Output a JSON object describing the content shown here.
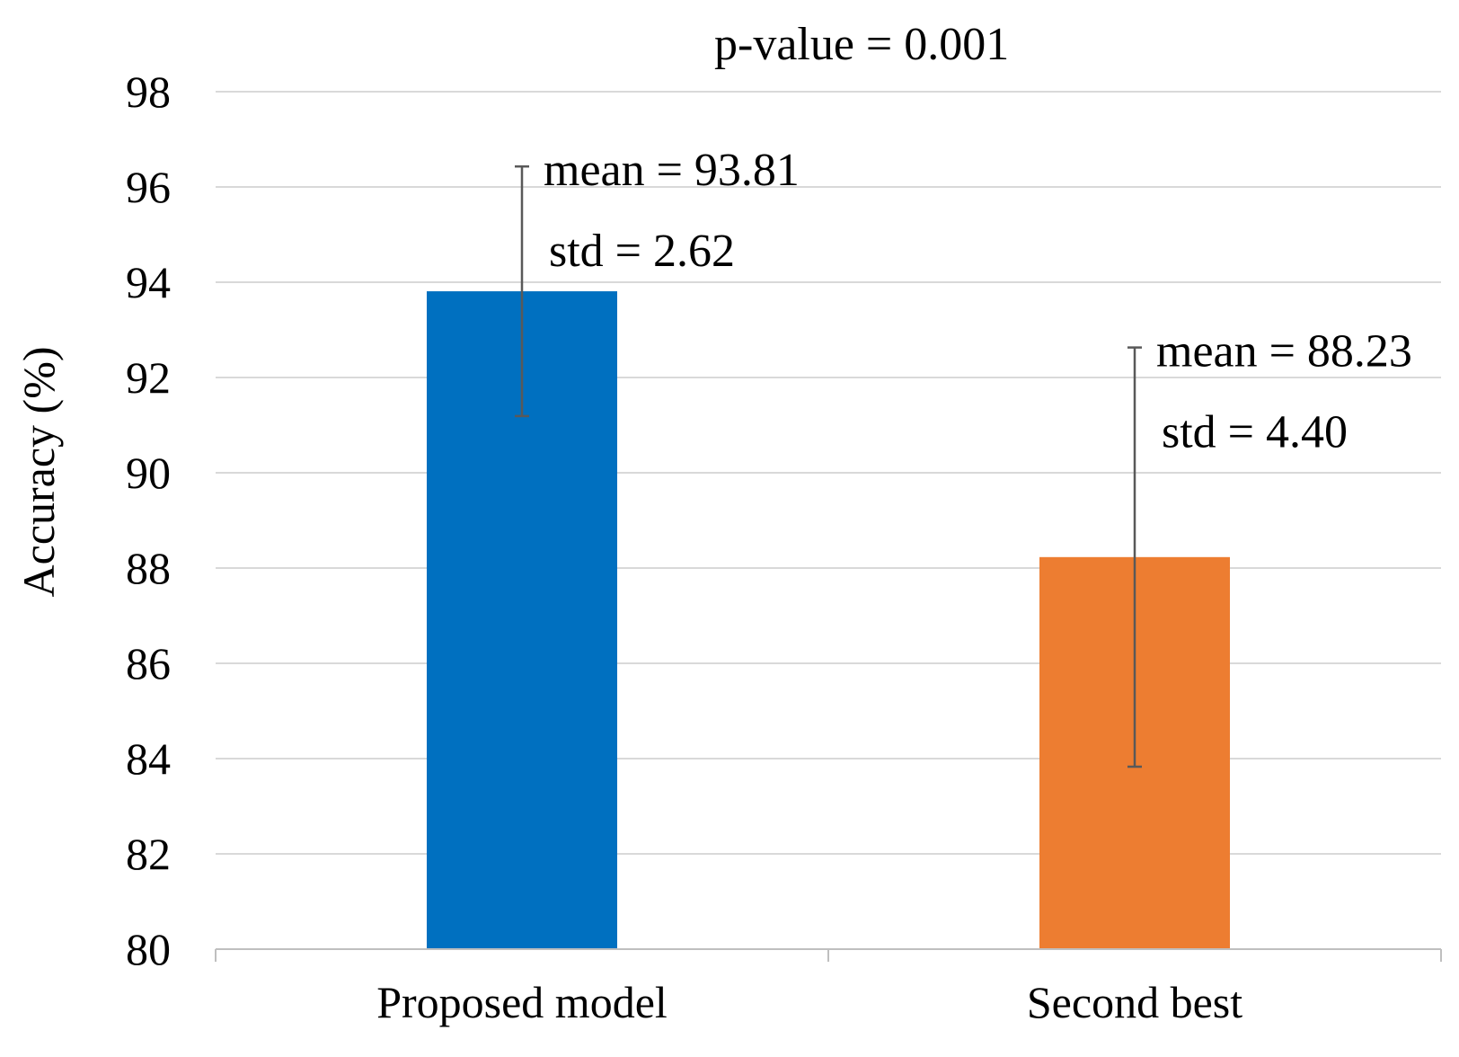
{
  "chart_data": {
    "type": "bar",
    "title": "",
    "xlabel": "",
    "ylabel": "Accuracy (%)",
    "ylim": [
      80,
      98
    ],
    "yticks": [
      80,
      82,
      84,
      86,
      88,
      90,
      92,
      94,
      96,
      98
    ],
    "grid": true,
    "categories": [
      "Proposed model",
      "Second best"
    ],
    "values": [
      93.81,
      88.23
    ],
    "errors": [
      2.62,
      4.4
    ],
    "colors": [
      "#0070c0",
      "#ed7d31"
    ],
    "annotations": [
      {
        "mean_label": "mean = 93.81",
        "std_label": "std = 2.62"
      },
      {
        "mean_label": "mean = 88.23",
        "std_label": "std = 4.40"
      }
    ],
    "top_annotation": "p-value = 0.001"
  }
}
